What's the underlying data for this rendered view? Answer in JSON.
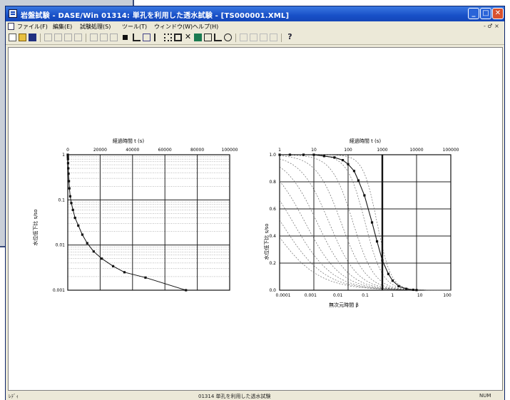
{
  "window": {
    "title": "岩盤試験 - DASE/Win 01314: 単孔を利用した透水試験 - [TS000001.XML]",
    "controls": {
      "minimize": "_",
      "maximize": "□",
      "close": "✕"
    }
  },
  "menu": {
    "items": [
      "ファイル(F)",
      "編集(E)",
      "試験処理(S)",
      "ツール(T)",
      "ウィンドウ(W)",
      "ヘルプ(H)"
    ],
    "mdi_controls": "- ♂ ×"
  },
  "toolbar": {
    "buttons": [
      "new-icon",
      "open-icon",
      "save-icon",
      "cut-icon",
      "copy-icon",
      "paste-icon",
      "undo-icon",
      "redo-icon",
      "zoom-icon",
      "print-icon",
      "square-icon",
      "arrow-icon",
      "pen-icon",
      "pointer-icon",
      "grid-icon",
      "box-icon",
      "delete-icon",
      "fill-icon",
      "text-icon",
      "corner-icon",
      "eye-icon",
      "first-icon",
      "prev-icon",
      "next-icon",
      "last-icon",
      "help-icon"
    ]
  },
  "left_chart": {
    "top_axis_label": "経過時間 t (s)",
    "top_ticks": [
      "0",
      "20000",
      "40000",
      "60000",
      "80000",
      "100000"
    ],
    "y_label": "水位低下比 s/so",
    "y_ticks": [
      "1",
      "0.1",
      "0.01",
      "0.001"
    ]
  },
  "right_chart": {
    "top_axis_label": "経過時間 t (s)",
    "top_ticks": [
      "1",
      "10",
      "100",
      "1000",
      "10000",
      "100000"
    ],
    "y_label": "水位低下比 s/so",
    "y_ticks": [
      "1.0",
      "0.8",
      "0.6",
      "0.4",
      "0.2",
      "0.0"
    ],
    "x_ticks": [
      "0.0001",
      "0.001",
      "0.01",
      "0.1",
      "1",
      "10",
      "100"
    ],
    "x_label": "無次元時間 β"
  },
  "chart_data": [
    {
      "type": "scatter",
      "x": [
        0,
        60,
        120,
        200,
        300,
        450,
        700,
        1000,
        1500,
        2200,
        3200,
        4500,
        6500,
        9000,
        12000,
        16000,
        21000,
        28000,
        35000,
        48000,
        73000
      ],
      "y": [
        1.0,
        0.9,
        0.8,
        0.65,
        0.5,
        0.38,
        0.26,
        0.18,
        0.12,
        0.085,
        0.06,
        0.04,
        0.027,
        0.017,
        0.011,
        0.0072,
        0.005,
        0.0034,
        0.0025,
        0.0019,
        0.001
      ],
      "xlim": [
        0,
        100000
      ],
      "ylim": [
        0.001,
        1
      ],
      "yscale": "log",
      "xlabel": "経過時間 t (s)",
      "ylabel": "水位低下比 s/so"
    },
    {
      "type": "scatter",
      "x": [
        1,
        2,
        5,
        10,
        20,
        40,
        70,
        100,
        150,
        200,
        300,
        500,
        700,
        1000,
        1500,
        2000,
        3000,
        5000,
        8000,
        10000
      ],
      "y": [
        1.0,
        1.0,
        1.0,
        1.0,
        0.99,
        0.98,
        0.96,
        0.93,
        0.88,
        0.81,
        0.7,
        0.5,
        0.36,
        0.22,
        0.12,
        0.07,
        0.03,
        0.01,
        0.003,
        0.001
      ],
      "xlim": [
        1,
        100000
      ],
      "ylim": [
        0,
        1
      ],
      "xscale": "log",
      "xlabel": "経過時間 t (s)",
      "ylabel": "水位低下比 s/so",
      "bottom_axis_label": "無次元時間 β",
      "type_curves_alpha": [
        0.1,
        0.01,
        0.001,
        0.0001,
        1e-05,
        1e-06,
        1e-07,
        1e-08,
        1e-09,
        1e-10
      ]
    }
  ],
  "status": {
    "left": "ﾚﾃﾞｨ",
    "center": "01314 単孔を利用した透水試験",
    "right": "NUM"
  }
}
